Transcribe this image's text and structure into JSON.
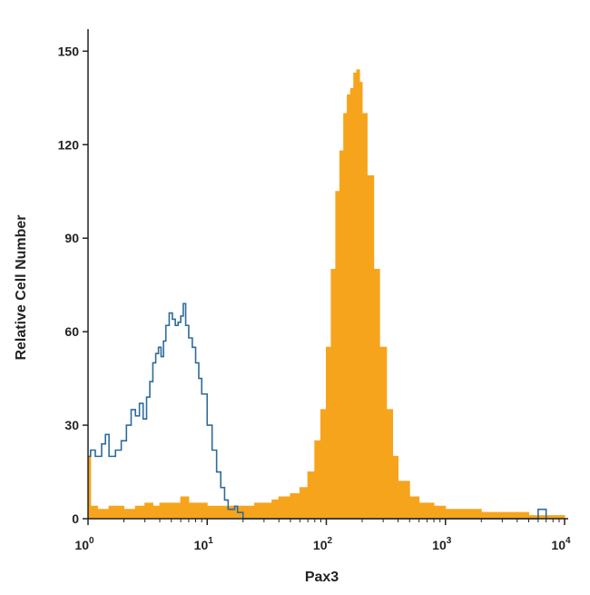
{
  "chart_data": {
    "type": "area",
    "xlabel": "Pax3",
    "ylabel": "Relative Cell Number",
    "x_scale": "log",
    "xlim": [
      1,
      10000
    ],
    "ylim": [
      0,
      160
    ],
    "x_ticks": [
      {
        "value": 1,
        "base": "10",
        "exp": "0"
      },
      {
        "value": 10,
        "base": "10",
        "exp": "1"
      },
      {
        "value": 100,
        "base": "10",
        "exp": "2"
      },
      {
        "value": 1000,
        "base": "10",
        "exp": "3"
      },
      {
        "value": 10000,
        "base": "10",
        "exp": "4"
      }
    ],
    "y_ticks": [
      0,
      30,
      60,
      90,
      120,
      150
    ],
    "grid": false,
    "colors": {
      "filled": "#f7a41d",
      "outline": "#2e6b9a",
      "axis": "#222222"
    },
    "series": [
      {
        "style": "filled",
        "points": [
          [
            1.0,
            20
          ],
          [
            1.05,
            4
          ],
          [
            1.2,
            3
          ],
          [
            1.5,
            4
          ],
          [
            2,
            3
          ],
          [
            2.5,
            4
          ],
          [
            3,
            5
          ],
          [
            3.5,
            4
          ],
          [
            4,
            5
          ],
          [
            5,
            5
          ],
          [
            6,
            7
          ],
          [
            7,
            5
          ],
          [
            8,
            5
          ],
          [
            10,
            4
          ],
          [
            12,
            4
          ],
          [
            15,
            4
          ],
          [
            20,
            4
          ],
          [
            25,
            5
          ],
          [
            30,
            5
          ],
          [
            35,
            6
          ],
          [
            40,
            7
          ],
          [
            50,
            8
          ],
          [
            60,
            10
          ],
          [
            70,
            15
          ],
          [
            80,
            25
          ],
          [
            90,
            35
          ],
          [
            100,
            55
          ],
          [
            110,
            80
          ],
          [
            120,
            105
          ],
          [
            130,
            118
          ],
          [
            140,
            130
          ],
          [
            150,
            136
          ],
          [
            160,
            138
          ],
          [
            170,
            143
          ],
          [
            180,
            144
          ],
          [
            190,
            140
          ],
          [
            200,
            130
          ],
          [
            220,
            110
          ],
          [
            250,
            80
          ],
          [
            280,
            55
          ],
          [
            320,
            35
          ],
          [
            360,
            20
          ],
          [
            400,
            12
          ],
          [
            500,
            7
          ],
          [
            600,
            5
          ],
          [
            800,
            4
          ],
          [
            1000,
            3
          ],
          [
            2000,
            2
          ],
          [
            3000,
            2
          ],
          [
            5000,
            1
          ],
          [
            7000,
            1
          ],
          [
            10000,
            1
          ]
        ]
      },
      {
        "style": "outline",
        "points": [
          [
            1.0,
            20
          ],
          [
            1.05,
            22
          ],
          [
            1.15,
            20
          ],
          [
            1.3,
            24
          ],
          [
            1.4,
            27
          ],
          [
            1.5,
            20
          ],
          [
            1.7,
            22
          ],
          [
            1.9,
            25
          ],
          [
            2.1,
            30
          ],
          [
            2.3,
            35
          ],
          [
            2.5,
            33
          ],
          [
            2.7,
            37
          ],
          [
            2.9,
            32
          ],
          [
            3.1,
            39
          ],
          [
            3.3,
            44
          ],
          [
            3.5,
            50
          ],
          [
            3.7,
            53
          ],
          [
            3.9,
            55
          ],
          [
            4.1,
            52
          ],
          [
            4.3,
            57
          ],
          [
            4.5,
            62
          ],
          [
            4.8,
            66
          ],
          [
            5.1,
            64
          ],
          [
            5.4,
            62
          ],
          [
            5.7,
            63
          ],
          [
            6.0,
            65
          ],
          [
            6.3,
            69
          ],
          [
            6.6,
            62
          ],
          [
            7.0,
            58
          ],
          [
            7.5,
            55
          ],
          [
            8.0,
            50
          ],
          [
            8.5,
            45
          ],
          [
            9.0,
            40
          ],
          [
            10,
            30
          ],
          [
            11,
            22
          ],
          [
            12,
            15
          ],
          [
            13,
            10
          ],
          [
            14,
            6
          ],
          [
            15,
            3
          ],
          [
            17,
            4
          ],
          [
            18,
            2
          ],
          [
            20,
            0
          ],
          [
            5800,
            0
          ],
          [
            6000,
            3
          ],
          [
            6800,
            3
          ],
          [
            7000,
            0
          ]
        ]
      }
    ]
  }
}
